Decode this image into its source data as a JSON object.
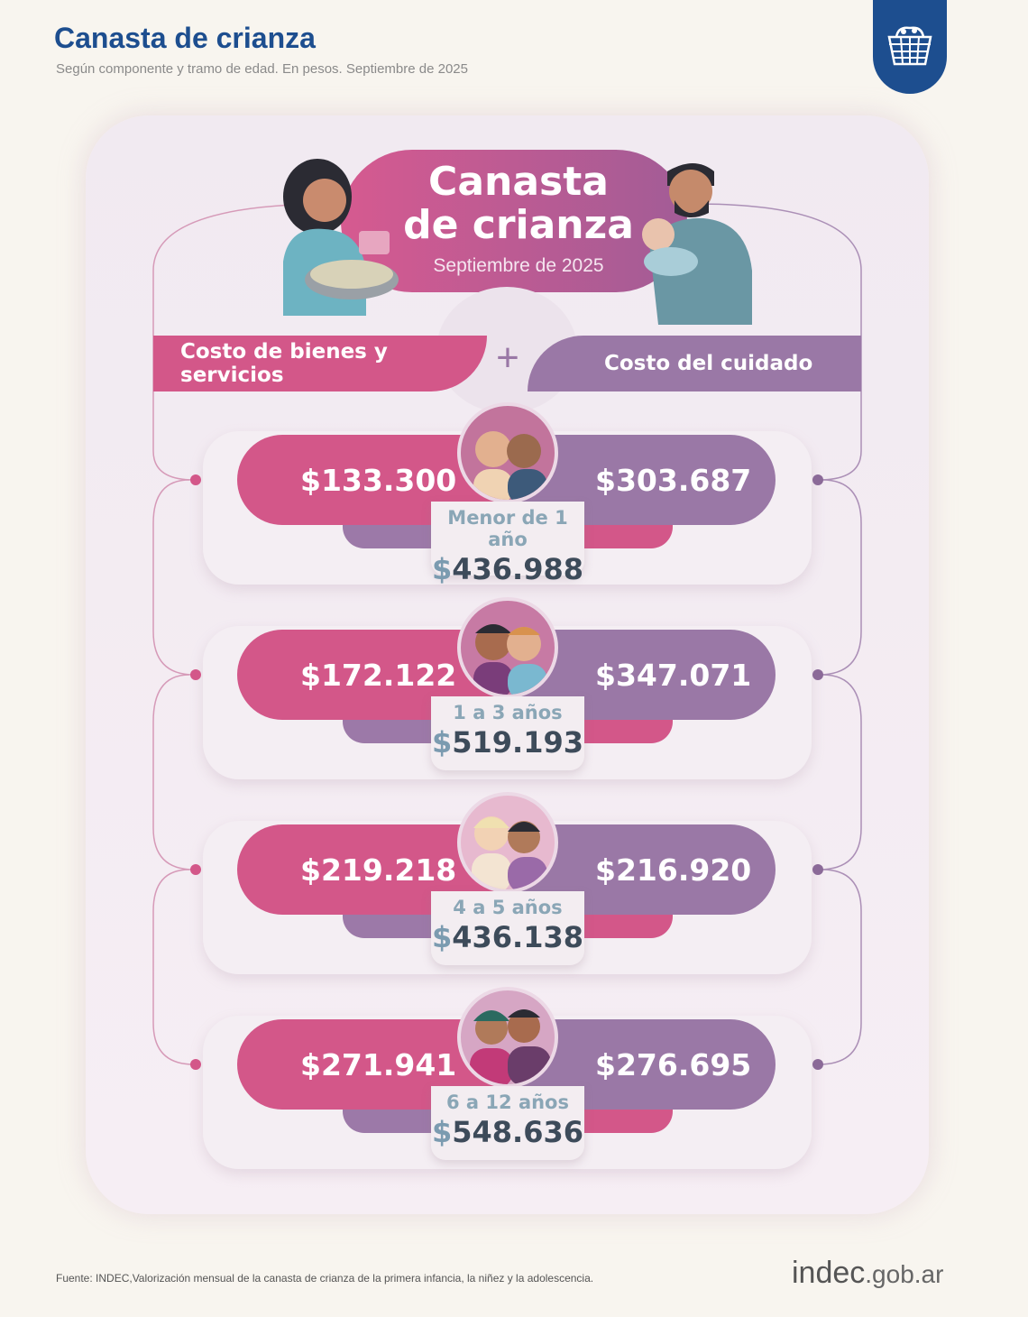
{
  "header": {
    "title": "Canasta de crianza",
    "subtitle": "Según componente y tramo de edad. En pesos. Septiembre de 2025"
  },
  "infographic": {
    "title_line1": "Canasta",
    "title_line2": "de crianza",
    "date": "Septiembre de 2025",
    "left_component": "Costo de bienes y servicios",
    "plus": "+",
    "right_component": "Costo del cuidado"
  },
  "rows": [
    {
      "age": "Menor de 1 año",
      "goods": "$133.300",
      "care": "$303.687",
      "total_symbol": "$",
      "total": "436.988"
    },
    {
      "age": "1 a 3 años",
      "goods": "$172.122",
      "care": "$347.071",
      "total_symbol": "$",
      "total": "519.193"
    },
    {
      "age": "4 a 5 años",
      "goods": "$219.218",
      "care": "$216.920",
      "total_symbol": "$",
      "total": "436.138"
    },
    {
      "age": "6 a 12 años",
      "goods": "$271.941",
      "care": "$276.695",
      "total_symbol": "$",
      "total": "548.636"
    }
  ],
  "footer": {
    "source": "Fuente: INDEC,Valorización mensual de la canasta de crianza de la primera infancia, la niñez y la adolescencia.",
    "brand": "indec",
    "brand_suffix": ".gob.ar"
  },
  "colors": {
    "goods": "#d35789",
    "care": "#9a78a6",
    "title_blue": "#1d4e8f"
  },
  "icons": {
    "logo": "shopping-basket-icon"
  }
}
